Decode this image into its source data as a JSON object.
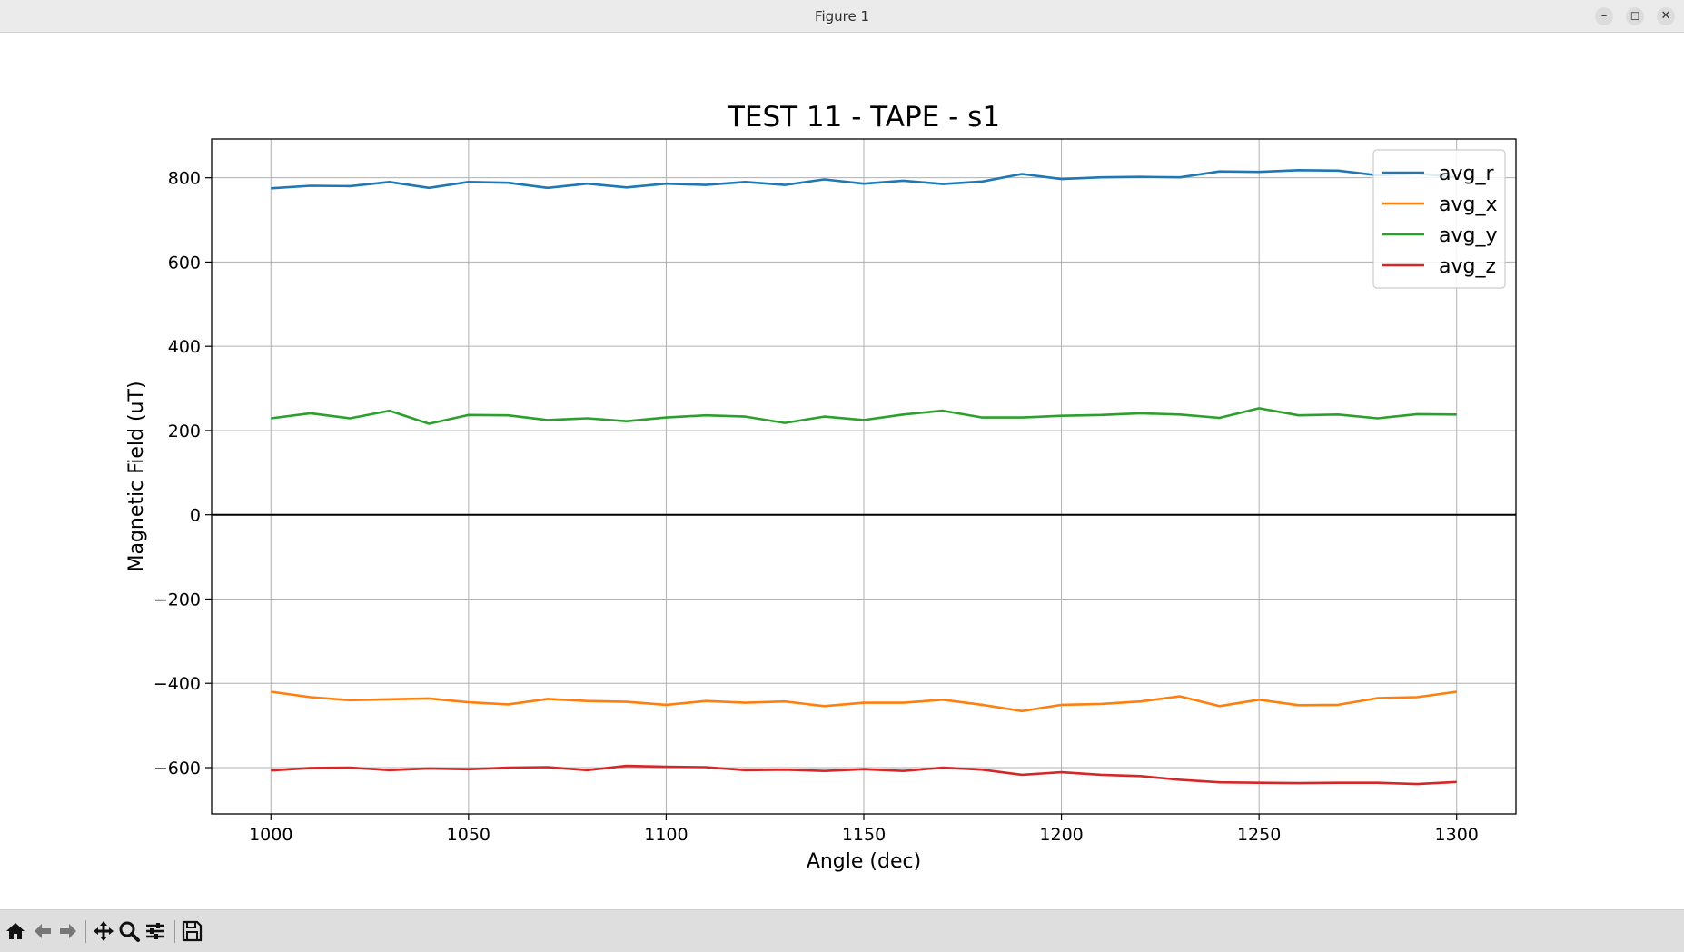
{
  "window": {
    "title": "Figure 1",
    "controls": {
      "minimize": "–",
      "maximize": "◻",
      "close": "✕"
    }
  },
  "toolbar": {
    "icons": [
      "home-icon",
      "back-arrow-icon",
      "forward-arrow-icon",
      "pan-icon",
      "zoom-icon",
      "configure-subplots-icon",
      "save-icon"
    ]
  },
  "chart_data": {
    "type": "line",
    "title": "TEST 11 - TAPE - s1",
    "xlabel": "Angle (dec)",
    "ylabel": "Magnetic Field (uT)",
    "xlim": [
      985,
      1315
    ],
    "ylim": [
      -710,
      892
    ],
    "xticks": [
      1000,
      1050,
      1100,
      1150,
      1200,
      1250,
      1300
    ],
    "yticks": [
      -600,
      -400,
      -200,
      0,
      200,
      400,
      600,
      800
    ],
    "xtick_labels": [
      "1000",
      "1050",
      "1100",
      "1150",
      "1200",
      "1250",
      "1300"
    ],
    "ytick_labels": [
      "−600",
      "−400",
      "−200",
      "0",
      "200",
      "400",
      "600",
      "800"
    ],
    "grid": true,
    "zero_line": true,
    "legend_position": "top-right",
    "x": [
      1000,
      1010,
      1020,
      1030,
      1040,
      1050,
      1060,
      1070,
      1080,
      1090,
      1100,
      1110,
      1120,
      1130,
      1140,
      1150,
      1160,
      1170,
      1180,
      1190,
      1200,
      1210,
      1220,
      1230,
      1240,
      1250,
      1260,
      1270,
      1280,
      1290,
      1300
    ],
    "series": [
      {
        "name": "avg_r",
        "color": "#1f77b4",
        "values": [
          775,
          781,
          780,
          790,
          776,
          790,
          788,
          776,
          786,
          777,
          786,
          783,
          790,
          783,
          796,
          786,
          793,
          785,
          791,
          809,
          797,
          801,
          802,
          801,
          815,
          814,
          818,
          817,
          806,
          810,
          801
        ]
      },
      {
        "name": "avg_x",
        "color": "#ff7f0e",
        "values": [
          -420,
          -433,
          -440,
          -438,
          -436,
          -445,
          -450,
          -437,
          -442,
          -444,
          -451,
          -442,
          -446,
          -443,
          -454,
          -446,
          -446,
          -439,
          -451,
          -466,
          -451,
          -449,
          -443,
          -431,
          -454,
          -439,
          -452,
          -451,
          -435,
          -433,
          -420
        ]
      },
      {
        "name": "avg_y",
        "color": "#2ca02c",
        "values": [
          229,
          241,
          229,
          247,
          216,
          237,
          236,
          225,
          229,
          222,
          231,
          236,
          233,
          218,
          233,
          225,
          238,
          247,
          231,
          231,
          235,
          237,
          241,
          238,
          230,
          253,
          236,
          238,
          229,
          239,
          238
        ]
      },
      {
        "name": "avg_z",
        "color": "#d62728",
        "values": [
          -607,
          -601,
          -600,
          -606,
          -602,
          -604,
          -600,
          -599,
          -606,
          -596,
          -598,
          -599,
          -606,
          -605,
          -608,
          -604,
          -608,
          -600,
          -605,
          -617,
          -611,
          -617,
          -620,
          -629,
          -635,
          -636,
          -637,
          -636,
          -636,
          -639,
          -634
        ]
      }
    ]
  }
}
